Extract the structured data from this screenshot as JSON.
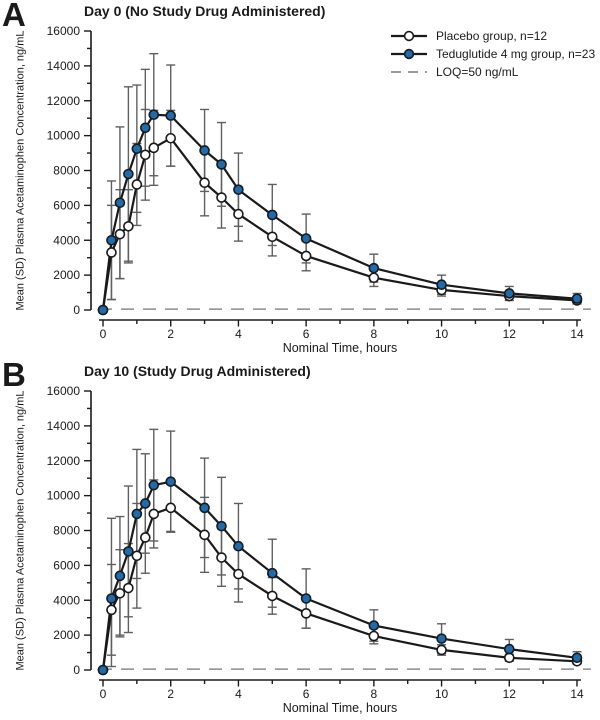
{
  "figure": {
    "colors": {
      "teduglutide_marker": "#1e6cb0",
      "placebo_marker_fill": "#ffffff",
      "series_line": "#1a1a1a",
      "error_bar": "#5f5f5f",
      "loq_line": "#8c8c8c"
    },
    "legend": [
      {
        "marker": "open-circle",
        "label": "Placebo group, n=12"
      },
      {
        "marker": "filled-circle",
        "label": "Teduglutide 4 mg group, n=23"
      },
      {
        "marker": "dashed-line",
        "label": "LOQ=50 ng/mL"
      }
    ]
  },
  "chart_data": [
    {
      "type": "line",
      "letter": "A",
      "title": "Day 0 (No Study Drug Administered)",
      "x_label": "Nominal Time, hours",
      "y_label": "Mean (SD) Plasma Acetaminophen Concentration, ng/mL",
      "x": [
        0,
        0.25,
        0.5,
        0.75,
        1,
        1.25,
        1.5,
        2,
        3,
        3.5,
        4,
        5,
        6,
        8,
        10,
        12,
        14
      ],
      "xlim": [
        0,
        14
      ],
      "ylim": [
        0,
        16000
      ],
      "x_ticks": [
        0,
        2,
        4,
        6,
        8,
        10,
        12,
        14
      ],
      "y_ticks": [
        0,
        2000,
        4000,
        6000,
        8000,
        10000,
        12000,
        14000,
        16000
      ],
      "grid": false,
      "legend_position": "top-right",
      "loq_value": 50,
      "series": [
        {
          "name": "Placebo group, n=12",
          "marker": "open-circle",
          "values": [
            0,
            3300,
            4350,
            4800,
            7200,
            8900,
            9300,
            9850,
            7300,
            6450,
            5500,
            4200,
            3100,
            1850,
            1150,
            800,
            550
          ],
          "sd": [
            0,
            2700,
            2550,
            2100,
            2350,
            2600,
            2150,
            1600,
            1900,
            1750,
            1550,
            1100,
            850,
            500,
            350,
            250,
            200
          ]
        },
        {
          "name": "Teduglutide 4 mg group, n=23",
          "marker": "filled-circle",
          "values": [
            0,
            4000,
            6150,
            7800,
            9250,
            10450,
            11200,
            11150,
            9150,
            8350,
            6900,
            5450,
            4100,
            2400,
            1450,
            950,
            650
          ],
          "sd": [
            0,
            3400,
            4350,
            5000,
            3650,
            3350,
            3500,
            2900,
            2350,
            2400,
            2100,
            1750,
            1400,
            800,
            550,
            400,
            300
          ]
        }
      ]
    },
    {
      "type": "line",
      "letter": "B",
      "title": "Day 10 (Study Drug Administered)",
      "x_label": "Nominal Time, hours",
      "y_label": "Mean (SD) Plasma Acetaminophen Concentration, ng/mL",
      "x": [
        0,
        0.25,
        0.5,
        0.75,
        1,
        1.25,
        1.5,
        2,
        3,
        3.5,
        4,
        5,
        6,
        8,
        10,
        12,
        14
      ],
      "xlim": [
        0,
        14
      ],
      "ylim": [
        0,
        16000
      ],
      "x_ticks": [
        0,
        2,
        4,
        6,
        8,
        10,
        12,
        14
      ],
      "y_ticks": [
        0,
        2000,
        4000,
        6000,
        8000,
        10000,
        12000,
        14000,
        16000
      ],
      "grid": false,
      "legend_position": "none",
      "loq_value": 50,
      "series": [
        {
          "name": "Placebo group, n=12",
          "marker": "open-circle",
          "values": [
            0,
            3450,
            4400,
            4700,
            6550,
            7600,
            8950,
            9300,
            7750,
            6450,
            5500,
            4250,
            3250,
            1950,
            1150,
            700,
            500
          ],
          "sd": [
            0,
            2600,
            2500,
            2550,
            3000,
            2050,
            1950,
            1350,
            2150,
            1650,
            1600,
            1050,
            850,
            450,
            300,
            200,
            150
          ]
        },
        {
          "name": "Teduglutide 4 mg group, n=23",
          "marker": "filled-circle",
          "values": [
            0,
            4100,
            5400,
            6800,
            8950,
            9550,
            10600,
            10800,
            9300,
            8250,
            7100,
            5550,
            4100,
            2550,
            1800,
            1200,
            700
          ],
          "sd": [
            0,
            4600,
            3400,
            3750,
            3700,
            2850,
            3200,
            2900,
            2850,
            2800,
            2450,
            1950,
            1700,
            900,
            850,
            550,
            350
          ]
        }
      ]
    }
  ]
}
